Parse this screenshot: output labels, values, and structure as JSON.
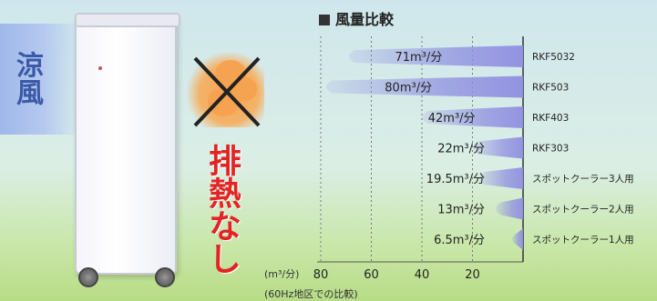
{
  "illustration": {
    "cool_air_label": "涼風",
    "no_exhaust_label": "排熱なし",
    "exhaust_icon": "heat-exhaust-crossed-icon"
  },
  "chart_data": {
    "type": "bar",
    "orientation": "horizontal",
    "reversed_x": true,
    "title": "風量比較",
    "xlabel": "(m³/分)",
    "x_note": "(60Hz地区での比較)",
    "xlim": [
      0,
      80
    ],
    "ticks": [
      80,
      60,
      40,
      20
    ],
    "categories": [
      "RKF5032",
      "RKF503",
      "RKF403",
      "RKF303",
      "スポットクーラー3人用",
      "スポットクーラー2人用",
      "スポットクーラー1人用"
    ],
    "values": [
      71,
      80,
      42,
      22,
      19.5,
      13,
      6.5
    ],
    "value_labels": [
      "71m³/分",
      "80m³/分",
      "42m³/分",
      "22m³/分",
      "19.5m³/分",
      "13m³/分",
      "6.5m³/分"
    ],
    "bar_color": "#8f8fe0"
  }
}
